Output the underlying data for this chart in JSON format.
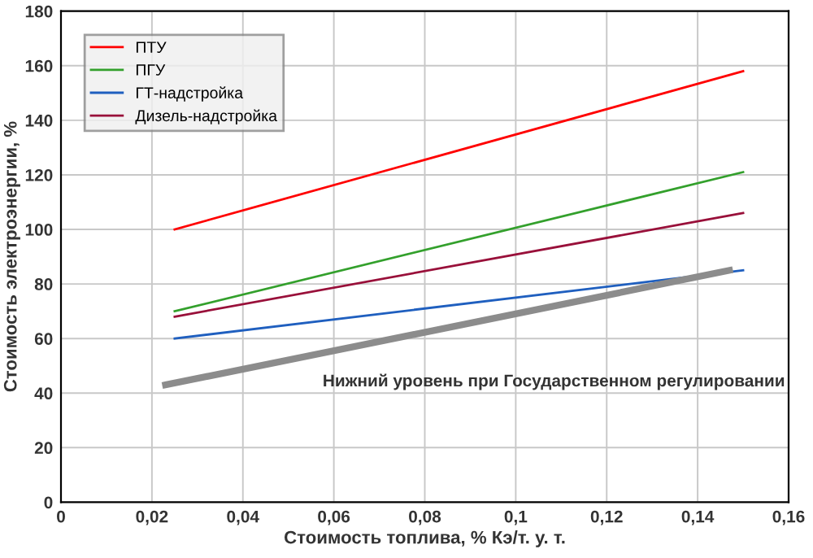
{
  "chart_data": {
    "type": "line",
    "xlabel": "Стоимость топлива, % Кэ/т. у. т.",
    "ylabel": "Стоимость электроэнергии, %",
    "series": [
      {
        "name": "ПТУ",
        "color": "#ff0000",
        "x": [
          0.025,
          0.15
        ],
        "values": [
          100,
          158
        ]
      },
      {
        "name": "ПГУ",
        "color": "#33a02c",
        "x": [
          0.025,
          0.15
        ],
        "values": [
          70,
          121
        ]
      },
      {
        "name": "ГТ-надстройка",
        "color": "#1f5fbf",
        "x": [
          0.025,
          0.15
        ],
        "values": [
          60,
          85
        ]
      },
      {
        "name": "Дизель-надстройка",
        "color": "#99103a",
        "x": [
          0.025,
          0.15
        ],
        "values": [
          68,
          106
        ]
      },
      {
        "color": "#8c8c8c",
        "x": [
          0.023,
          0.147
        ],
        "values": [
          43,
          85
        ]
      }
    ],
    "annotations": [
      "Нижний уровень при Государственном регулировании"
    ],
    "xlim": [
      0,
      0.16
    ],
    "ylim": [
      0,
      180
    ],
    "xticks": [
      0,
      {
        "value": 0.02,
        "label": "0,02"
      },
      {
        "value": 0.04,
        "label": "0,04"
      },
      {
        "value": 0.06,
        "label": "0,06"
      },
      {
        "value": 0.08,
        "label": "0,08"
      },
      {
        "value": 0.1,
        "label": "0,1"
      },
      {
        "value": 0.12,
        "label": "0,12"
      },
      {
        "value": 0.14,
        "label": "0,14"
      },
      {
        "value": 0.16,
        "label": "0,16"
      }
    ],
    "yticks": [
      0,
      20,
      40,
      60,
      80,
      100,
      120,
      140,
      160,
      180
    ],
    "grid": true,
    "legend": "top left",
    "marker": "none",
    "line_style": "solid"
  }
}
